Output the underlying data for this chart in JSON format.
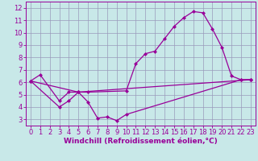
{
  "background_color": "#c8e8e8",
  "grid_color": "#9999bb",
  "line_color": "#990099",
  "marker": "D",
  "markersize": 2.5,
  "linewidth": 0.9,
  "xlabel": "Windchill (Refroidissement éolien,°C)",
  "xlabel_fontsize": 6.5,
  "tick_fontsize": 6,
  "xlim": [
    -0.5,
    23.5
  ],
  "ylim": [
    2.5,
    12.5
  ],
  "xticks": [
    0,
    1,
    2,
    3,
    4,
    5,
    6,
    7,
    8,
    9,
    10,
    11,
    12,
    13,
    14,
    15,
    16,
    17,
    18,
    19,
    20,
    21,
    22,
    23
  ],
  "yticks": [
    3,
    4,
    5,
    6,
    7,
    8,
    9,
    10,
    11,
    12
  ],
  "curve1_x": [
    0,
    1,
    3,
    4,
    5,
    6,
    10,
    11,
    12,
    13,
    14,
    15,
    16,
    17,
    18,
    19,
    20,
    21,
    22,
    23
  ],
  "curve1_y": [
    6.1,
    6.6,
    4.5,
    5.2,
    5.2,
    5.2,
    5.3,
    7.5,
    8.3,
    8.5,
    9.5,
    10.5,
    11.2,
    11.7,
    11.6,
    10.3,
    8.8,
    6.5,
    6.2,
    6.2
  ],
  "curve2_x": [
    0,
    3,
    4,
    5,
    6,
    7,
    8,
    9,
    10,
    22,
    23
  ],
  "curve2_y": [
    6.1,
    4.0,
    4.5,
    5.2,
    4.4,
    3.1,
    3.2,
    2.9,
    3.4,
    6.2,
    6.2
  ],
  "curve3_x": [
    0,
    5,
    23
  ],
  "curve3_y": [
    6.1,
    5.2,
    6.2
  ]
}
